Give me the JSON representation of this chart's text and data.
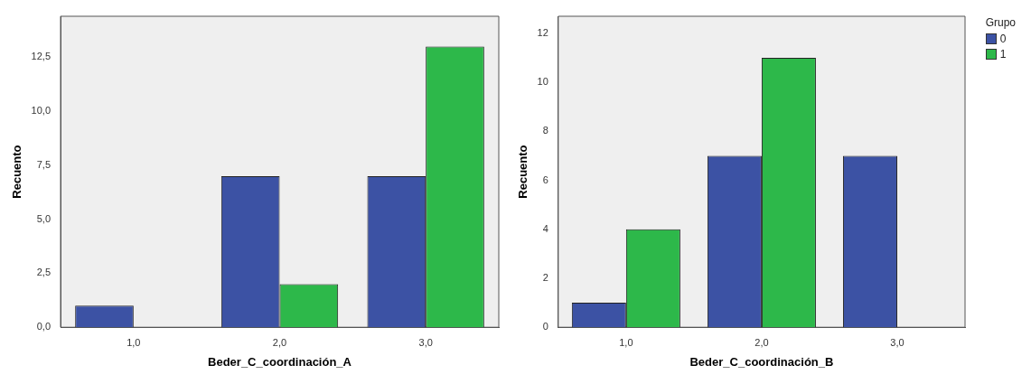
{
  "chart_data": [
    {
      "type": "bar",
      "xlabel": "Beder_C_coordinación_A",
      "ylabel": "Recuento",
      "categories": [
        "1,0",
        "2,0",
        "3,0"
      ],
      "series": [
        {
          "color": "#3c52a4",
          "values": [
            1,
            7,
            7
          ]
        },
        {
          "color": "#2db84a",
          "values": [
            0,
            2,
            13
          ]
        }
      ],
      "ylim": [
        0,
        14.4
      ],
      "yticks": [
        {
          "value": 0,
          "label": "0,0"
        },
        {
          "value": 2.5,
          "label": "2,5"
        },
        {
          "value": 5,
          "label": "5,0"
        },
        {
          "value": 7.5,
          "label": "7,5"
        },
        {
          "value": 10,
          "label": "10,0"
        },
        {
          "value": 12.5,
          "label": "12,5"
        }
      ],
      "grid": false,
      "legend": false
    },
    {
      "type": "bar",
      "xlabel": "Beder_C_coordinación_B",
      "ylabel": "Recuento",
      "categories": [
        "1,0",
        "2,0",
        "3,0"
      ],
      "series": [
        {
          "name": "0",
          "color": "#3c52a4",
          "values": [
            1,
            7,
            7
          ]
        },
        {
          "name": "1",
          "color": "#2db84a",
          "values": [
            4,
            11,
            0
          ]
        }
      ],
      "ylim": [
        0,
        12.7
      ],
      "yticks": [
        0,
        2,
        4,
        6,
        8,
        10,
        12
      ],
      "grid": false,
      "legend": "top right",
      "legend_title": "Grupo"
    }
  ]
}
